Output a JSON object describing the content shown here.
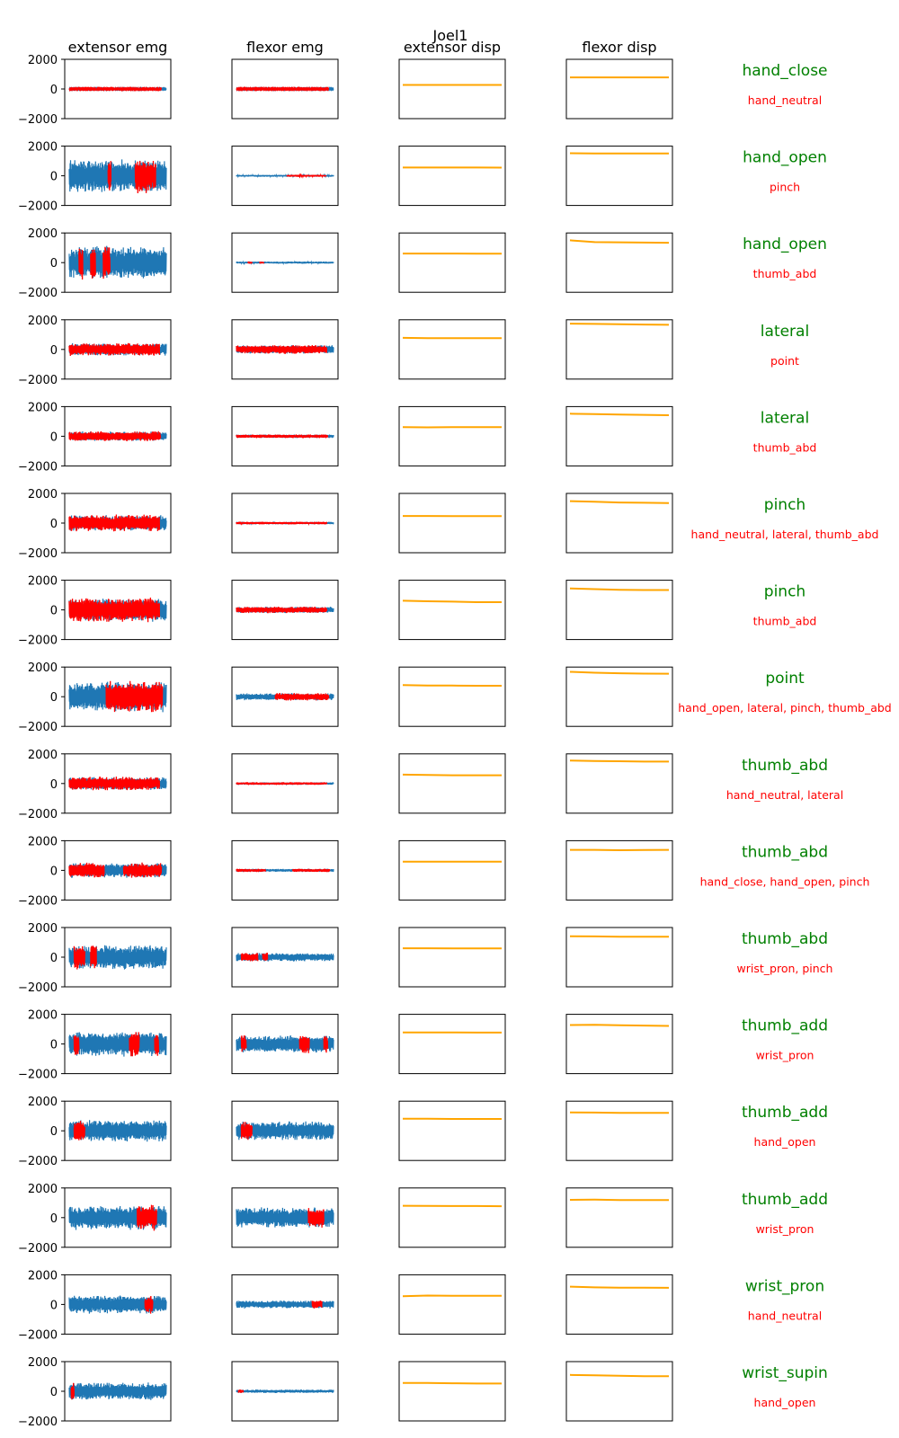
{
  "title": "Joel1",
  "colors": {
    "signal": "#1f77b4",
    "highlight": "#ff0000",
    "displacement": "#ffa500",
    "gesture": "#008000",
    "confusion": "#ff0000"
  },
  "chart_data": {
    "type": "line",
    "columns": [
      "extensor emg",
      "flexor emg",
      "extensor disp",
      "flexor disp"
    ],
    "yticks": [
      2000,
      0,
      -2000
    ],
    "ylim": [
      -2000,
      2000
    ],
    "rows": [
      {
        "gesture": "hand_close",
        "confusions": "hand_neutral",
        "ext_amp": 40,
        "flex_amp": 40,
        "ext_hl": [
          [
            0,
            0.95
          ]
        ],
        "flex_hl": [
          [
            0,
            0.95
          ]
        ],
        "ext_disp": [
          270,
          270,
          275,
          270,
          270
        ],
        "flex_disp": [
          780,
          780,
          780,
          780,
          780
        ]
      },
      {
        "gesture": "hand_open",
        "confusions": "pinch",
        "ext_amp": 1150,
        "flex_amp": 70,
        "ext_hl": [
          [
            0.4,
            0.43
          ],
          [
            0.68,
            0.89
          ]
        ],
        "flex_hl": [
          [
            0.52,
            0.92
          ]
        ],
        "ext_disp": [
          560,
          560,
          555,
          555,
          550
        ],
        "flex_disp": [
          1520,
          1510,
          1500,
          1500,
          1505
        ]
      },
      {
        "gesture": "hand_open",
        "confusions": "thumb_abd",
        "ext_amp": 1150,
        "flex_amp": 80,
        "ext_hl": [
          [
            0.1,
            0.14
          ],
          [
            0.22,
            0.27
          ],
          [
            0.35,
            0.42
          ]
        ],
        "flex_hl": [
          [
            0.12,
            0.16
          ],
          [
            0.24,
            0.28
          ]
        ],
        "ext_disp": [
          610,
          610,
          610,
          605,
          605
        ],
        "flex_disp": [
          1500,
          1380,
          1370,
          1350,
          1340
        ]
      },
      {
        "gesture": "lateral",
        "confusions": "point",
        "ext_amp": 420,
        "flex_amp": 300,
        "ext_hl": [
          [
            0,
            0.93
          ]
        ],
        "flex_hl": [
          [
            0,
            0.93
          ]
        ],
        "ext_disp": [
          780,
          760,
          760,
          760,
          760
        ],
        "flex_disp": [
          1740,
          1720,
          1700,
          1680,
          1660
        ]
      },
      {
        "gesture": "lateral",
        "confusions": "thumb_abd",
        "ext_amp": 330,
        "flex_amp": 120,
        "ext_hl": [
          [
            0,
            0.94
          ]
        ],
        "flex_hl": [
          [
            0,
            0.94
          ]
        ],
        "ext_disp": [
          620,
          600,
          620,
          620,
          620
        ],
        "flex_disp": [
          1520,
          1490,
          1460,
          1440,
          1420
        ]
      },
      {
        "gesture": "pinch",
        "confusions": "hand_neutral, lateral, thumb_abd",
        "ext_amp": 550,
        "flex_amp": 90,
        "ext_hl": [
          [
            0,
            0.93
          ]
        ],
        "flex_hl": [
          [
            0,
            0.93
          ]
        ],
        "ext_disp": [
          480,
          480,
          470,
          470,
          470
        ],
        "flex_disp": [
          1480,
          1440,
          1390,
          1370,
          1350
        ]
      },
      {
        "gesture": "pinch",
        "confusions": "thumb_abd",
        "ext_amp": 800,
        "flex_amp": 220,
        "ext_hl": [
          [
            0,
            0.93
          ]
        ],
        "flex_hl": [
          [
            0,
            0.93
          ]
        ],
        "ext_disp": [
          620,
          580,
          560,
          520,
          520
        ],
        "flex_disp": [
          1450,
          1400,
          1360,
          1340,
          1340
        ]
      },
      {
        "gesture": "point",
        "confusions": "hand_open, lateral, pinch, thumb_abd",
        "ext_amp": 1050,
        "flex_amp": 250,
        "ext_hl": [
          [
            0.38,
            0.96
          ]
        ],
        "flex_hl": [
          [
            0.4,
            0.95
          ]
        ],
        "ext_disp": [
          780,
          760,
          750,
          740,
          740
        ],
        "flex_disp": [
          1680,
          1620,
          1580,
          1560,
          1550
        ]
      },
      {
        "gesture": "thumb_abd",
        "confusions": "hand_neutral, lateral",
        "ext_amp": 450,
        "flex_amp": 90,
        "ext_hl": [
          [
            0,
            0.93
          ]
        ],
        "flex_hl": [
          [
            0,
            0.93
          ]
        ],
        "ext_disp": [
          600,
          580,
          560,
          560,
          560
        ],
        "flex_disp": [
          1550,
          1520,
          1500,
          1480,
          1480
        ]
      },
      {
        "gesture": "thumb_abd",
        "confusions": "hand_close, hand_open, pinch",
        "ext_amp": 520,
        "flex_amp": 110,
        "ext_hl": [
          [
            0,
            0.36
          ],
          [
            0.56,
            0.95
          ]
        ],
        "flex_hl": [
          [
            0,
            0.3
          ],
          [
            0.58,
            0.96
          ]
        ],
        "ext_disp": [
          580,
          580,
          580,
          580,
          580
        ],
        "flex_disp": [
          1380,
          1380,
          1360,
          1370,
          1380
        ]
      },
      {
        "gesture": "thumb_abd",
        "confusions": "wrist_pron, pinch",
        "ext_amp": 850,
        "flex_amp": 300,
        "ext_hl": [
          [
            0.05,
            0.16
          ],
          [
            0.22,
            0.28
          ]
        ],
        "flex_hl": [
          [
            0.05,
            0.22
          ],
          [
            0.27,
            0.32
          ]
        ],
        "ext_disp": [
          600,
          600,
          590,
          590,
          590
        ],
        "flex_disp": [
          1410,
          1400,
          1380,
          1380,
          1380
        ]
      },
      {
        "gesture": "thumb_add",
        "confusions": "wrist_pron",
        "ext_amp": 850,
        "flex_amp": 600,
        "ext_hl": [
          [
            0.05,
            0.1
          ],
          [
            0.62,
            0.72
          ],
          [
            0.88,
            0.92
          ]
        ],
        "flex_hl": [
          [
            0.05,
            0.1
          ],
          [
            0.65,
            0.75
          ],
          [
            0.9,
            0.94
          ]
        ],
        "ext_disp": [
          780,
          780,
          780,
          770,
          770
        ],
        "flex_disp": [
          1280,
          1290,
          1260,
          1240,
          1220
        ]
      },
      {
        "gesture": "thumb_add",
        "confusions": "hand_open",
        "ext_amp": 750,
        "flex_amp": 650,
        "ext_hl": [
          [
            0.05,
            0.16
          ]
        ],
        "flex_hl": [
          [
            0.05,
            0.16
          ]
        ],
        "ext_disp": [
          820,
          820,
          800,
          800,
          800
        ],
        "flex_disp": [
          1240,
          1230,
          1210,
          1210,
          1210
        ]
      },
      {
        "gesture": "thumb_add",
        "confusions": "wrist_pron",
        "ext_amp": 850,
        "flex_amp": 700,
        "ext_hl": [
          [
            0.7,
            0.9
          ]
        ],
        "flex_hl": [
          [
            0.74,
            0.9
          ]
        ],
        "ext_disp": [
          800,
          790,
          780,
          780,
          770
        ],
        "flex_disp": [
          1200,
          1210,
          1190,
          1180,
          1180
        ]
      },
      {
        "gesture": "wrist_pron",
        "confusions": "hand_neutral",
        "ext_amp": 650,
        "flex_amp": 280,
        "ext_hl": [
          [
            0.78,
            0.86
          ]
        ],
        "flex_hl": [
          [
            0.78,
            0.88
          ]
        ],
        "ext_disp": [
          560,
          600,
          590,
          590,
          590
        ],
        "flex_disp": [
          1200,
          1150,
          1130,
          1130,
          1120
        ]
      },
      {
        "gesture": "wrist_supin",
        "confusions": "hand_open",
        "ext_amp": 600,
        "flex_amp": 120,
        "ext_hl": [
          [
            0.02,
            0.05
          ]
        ],
        "flex_hl": [
          [
            0.02,
            0.07
          ]
        ],
        "ext_disp": [
          560,
          560,
          540,
          520,
          520
        ],
        "flex_disp": [
          1100,
          1080,
          1050,
          1020,
          1010
        ]
      }
    ]
  }
}
